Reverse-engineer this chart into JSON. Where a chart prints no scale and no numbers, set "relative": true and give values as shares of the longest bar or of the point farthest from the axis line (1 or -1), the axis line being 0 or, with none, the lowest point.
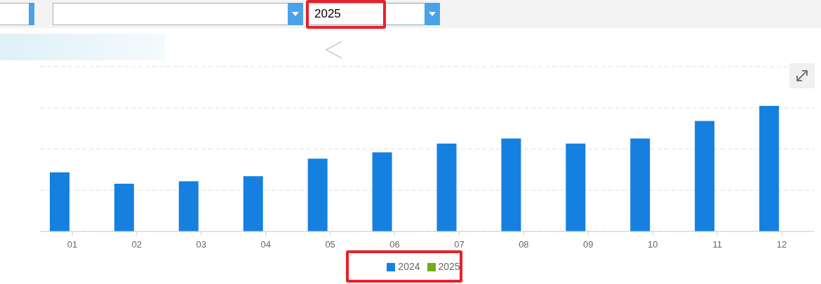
{
  "chart_data": {
    "type": "bar",
    "relative": true,
    "categories": [
      "01",
      "02",
      "03",
      "04",
      "05",
      "06",
      "07",
      "08",
      "09",
      "10",
      "11",
      "12"
    ],
    "series": [
      {
        "name": "2024",
        "color": "#1580e0",
        "values": [
          0.47,
          0.38,
          0.4,
          0.44,
          0.58,
          0.63,
          0.7,
          0.74,
          0.7,
          0.74,
          0.88,
          1
        ]
      },
      {
        "name": "2025",
        "color": "#73ab13",
        "values": [
          null,
          null,
          null,
          null,
          null,
          null,
          null,
          null,
          null,
          null,
          null,
          null
        ]
      }
    ],
    "grid": "y",
    "legend": "bottom",
    "annotations": [
      "2025"
    ]
  }
}
